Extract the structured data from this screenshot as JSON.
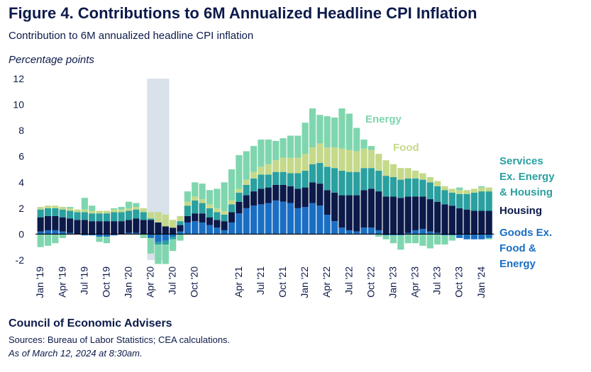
{
  "header": {
    "title": "Figure 4. Contributions to 6M Annualized Headline CPI Inflation",
    "subtitle": "Contribution to 6M annualized headline CPI inflation",
    "unit_label": "Percentage points"
  },
  "footer": {
    "org": "Council of Economic Advisers",
    "sources": "Sources: Bureau of Labor Statistics; CEA calculations.",
    "as_of": "As of March 12, 2024 at 8:30am."
  },
  "colors": {
    "goods": "#1a6fc4",
    "housing": "#0c1a4a",
    "services": "#2aa0a0",
    "food": "#c5d98a",
    "energy": "#7fd6ae",
    "shade": "#d9e1ea",
    "text": "#0c1a4a"
  },
  "chart_data": {
    "type": "bar",
    "stacked": true,
    "ylabel": "Percentage points",
    "ylim": [
      -2,
      12
    ],
    "yticks": [
      -2,
      0,
      2,
      4,
      6,
      8,
      10,
      12
    ],
    "grid": false,
    "recession_shading": {
      "from": "Apr '20",
      "to": "Jul '20",
      "note": "shaded band"
    },
    "x_tick_labels": [
      "Jan '19",
      "Apr '19",
      "Jul '19",
      "Oct '19",
      "Jan '20",
      "Apr '20",
      "Jul '20",
      "Oct '20",
      "Apr '21",
      "Jul '21",
      "Oct '21",
      "Jan '22",
      "Apr '22",
      "Jul '22",
      "Oct '22",
      "Jan '23",
      "Apr '23",
      "Jul '23",
      "Oct '23",
      "Jan '24"
    ],
    "x_tick_months": [
      0,
      3,
      6,
      9,
      12,
      15,
      18,
      21,
      27,
      30,
      33,
      36,
      39,
      42,
      45,
      48,
      51,
      54,
      57,
      60
    ],
    "categories": [
      "Jan 2019",
      "Feb 2019",
      "Mar 2019",
      "Apr 2019",
      "May 2019",
      "Jun 2019",
      "Jul 2019",
      "Aug 2019",
      "Sep 2019",
      "Oct 2019",
      "Nov 2019",
      "Dec 2019",
      "Jan 2020",
      "Feb 2020",
      "Mar 2020",
      "Apr 2020",
      "May 2020",
      "Jun 2020",
      "Jul 2020",
      "Aug 2020",
      "Sep 2020",
      "Oct 2020",
      "Nov 2020",
      "Dec 2020",
      "Jan 2021",
      "Feb 2021",
      "Mar 2021",
      "Apr 2021",
      "May 2021",
      "Jun 2021",
      "Jul 2021",
      "Aug 2021",
      "Sep 2021",
      "Oct 2021",
      "Nov 2021",
      "Dec 2021",
      "Jan 2022",
      "Feb 2022",
      "Mar 2022",
      "Apr 2022",
      "May 2022",
      "Jun 2022",
      "Jul 2022",
      "Aug 2022",
      "Sep 2022",
      "Oct 2022",
      "Nov 2022",
      "Dec 2022",
      "Jan 2023",
      "Feb 2023",
      "Mar 2023",
      "Apr 2023",
      "May 2023",
      "Jun 2023",
      "Jul 2023",
      "Aug 2023",
      "Sep 2023",
      "Oct 2023",
      "Nov 2023",
      "Dec 2023",
      "Jan 2024",
      "Feb 2024"
    ],
    "series": [
      {
        "name": "Goods Ex. Food & Energy",
        "color": "#1a6fc4",
        "values": [
          0.2,
          0.3,
          0.3,
          0.2,
          0.1,
          0.0,
          -0.1,
          -0.1,
          -0.2,
          -0.2,
          -0.1,
          0.0,
          0.1,
          0.1,
          0.0,
          -0.3,
          -0.6,
          -0.5,
          -0.2,
          0.2,
          0.9,
          1.0,
          0.9,
          0.7,
          0.5,
          0.3,
          0.9,
          1.6,
          2.0,
          2.2,
          2.3,
          2.4,
          2.6,
          2.5,
          2.4,
          2.0,
          2.1,
          2.4,
          2.2,
          1.5,
          1.0,
          0.5,
          0.3,
          0.2,
          0.5,
          0.5,
          0.3,
          -0.1,
          -0.1,
          -0.1,
          0.1,
          0.3,
          0.4,
          0.2,
          0.1,
          -0.1,
          -0.1,
          -0.3,
          -0.4,
          -0.4,
          -0.4,
          -0.3
        ]
      },
      {
        "name": "Housing",
        "color": "#0c1a4a",
        "values": [
          1.1,
          1.1,
          1.1,
          1.1,
          1.1,
          1.1,
          1.1,
          1.0,
          1.0,
          1.0,
          1.0,
          1.0,
          1.0,
          1.1,
          1.1,
          1.1,
          0.9,
          0.6,
          0.5,
          0.5,
          0.5,
          0.6,
          0.7,
          0.6,
          0.6,
          0.7,
          0.8,
          0.9,
          1.0,
          1.1,
          1.2,
          1.2,
          1.2,
          1.3,
          1.3,
          1.5,
          1.5,
          1.6,
          1.7,
          1.9,
          2.2,
          2.5,
          2.7,
          2.8,
          2.9,
          3.0,
          3.0,
          2.9,
          2.9,
          2.8,
          2.8,
          2.6,
          2.5,
          2.5,
          2.4,
          2.3,
          2.2,
          2.0,
          1.9,
          1.8,
          1.8,
          1.8
        ]
      },
      {
        "name": "Services Ex. Energy & Housing",
        "color": "#2aa0a0",
        "values": [
          0.6,
          0.6,
          0.6,
          0.6,
          0.6,
          0.6,
          0.6,
          0.6,
          0.6,
          0.6,
          0.7,
          0.7,
          0.7,
          0.7,
          0.6,
          0.1,
          -0.2,
          -0.3,
          -0.2,
          0.3,
          0.8,
          1.0,
          0.8,
          0.7,
          0.6,
          0.5,
          0.6,
          0.7,
          0.8,
          1.0,
          1.1,
          1.0,
          1.0,
          1.0,
          1.0,
          1.2,
          1.3,
          1.4,
          1.6,
          1.8,
          1.9,
          1.9,
          1.8,
          1.8,
          1.7,
          1.6,
          1.6,
          1.6,
          1.5,
          1.4,
          1.4,
          1.4,
          1.3,
          1.3,
          1.2,
          1.1,
          1.0,
          1.1,
          1.2,
          1.4,
          1.5,
          1.5
        ]
      },
      {
        "name": "Food",
        "color": "#c5d98a",
        "values": [
          0.2,
          0.2,
          0.2,
          0.2,
          0.2,
          0.2,
          0.2,
          0.2,
          0.2,
          0.2,
          0.2,
          0.2,
          0.2,
          0.2,
          0.3,
          0.5,
          0.8,
          0.9,
          0.6,
          0.4,
          0.3,
          0.3,
          0.3,
          0.3,
          0.3,
          0.3,
          0.3,
          0.3,
          0.4,
          0.5,
          0.6,
          0.8,
          0.9,
          1.1,
          1.2,
          1.2,
          1.3,
          1.3,
          1.5,
          1.5,
          1.6,
          1.7,
          1.7,
          1.6,
          1.5,
          1.4,
          1.3,
          1.2,
          1.0,
          0.9,
          0.8,
          0.6,
          0.5,
          0.4,
          0.4,
          0.3,
          0.3,
          0.3,
          0.3,
          0.3,
          0.3,
          0.3
        ]
      },
      {
        "name": "Energy",
        "color": "#7fd6ae",
        "values": [
          -1.0,
          -0.9,
          -0.7,
          -0.3,
          0.1,
          0.0,
          0.9,
          0.4,
          -0.4,
          -0.5,
          0.1,
          0.2,
          0.5,
          0.3,
          -0.3,
          -1.2,
          -1.5,
          -1.5,
          -0.9,
          -0.5,
          0.8,
          1.1,
          1.2,
          1.1,
          1.5,
          2.2,
          2.4,
          2.6,
          2.2,
          2.0,
          2.1,
          1.9,
          1.5,
          1.5,
          1.7,
          1.7,
          2.4,
          3.0,
          2.2,
          2.4,
          2.3,
          3.1,
          2.8,
          1.8,
          0.7,
          0.3,
          -0.2,
          -0.3,
          -0.6,
          -1.1,
          -0.7,
          -0.7,
          -0.9,
          -1.1,
          -0.8,
          -0.7,
          -0.4,
          0.2,
          0.0,
          0.0,
          0.1,
          -0.1
        ]
      }
    ],
    "series_labels": [
      {
        "key": "energy",
        "text": "Energy",
        "color": "#7fd6ae"
      },
      {
        "key": "food",
        "text": "Food",
        "color": "#c5d98a"
      },
      {
        "key": "services",
        "text": "Services Ex. Energy & Housing",
        "lines": [
          "Services",
          "Ex. Energy",
          "& Housing"
        ],
        "color": "#2aa0a0"
      },
      {
        "key": "housing",
        "text": "Housing",
        "lines": [
          "Housing"
        ],
        "color": "#0c1a4a"
      },
      {
        "key": "goods",
        "text": "Goods Ex. Food & Energy",
        "lines": [
          "Goods Ex.",
          "Food &",
          "Energy"
        ],
        "color": "#1a6fc4"
      }
    ]
  }
}
